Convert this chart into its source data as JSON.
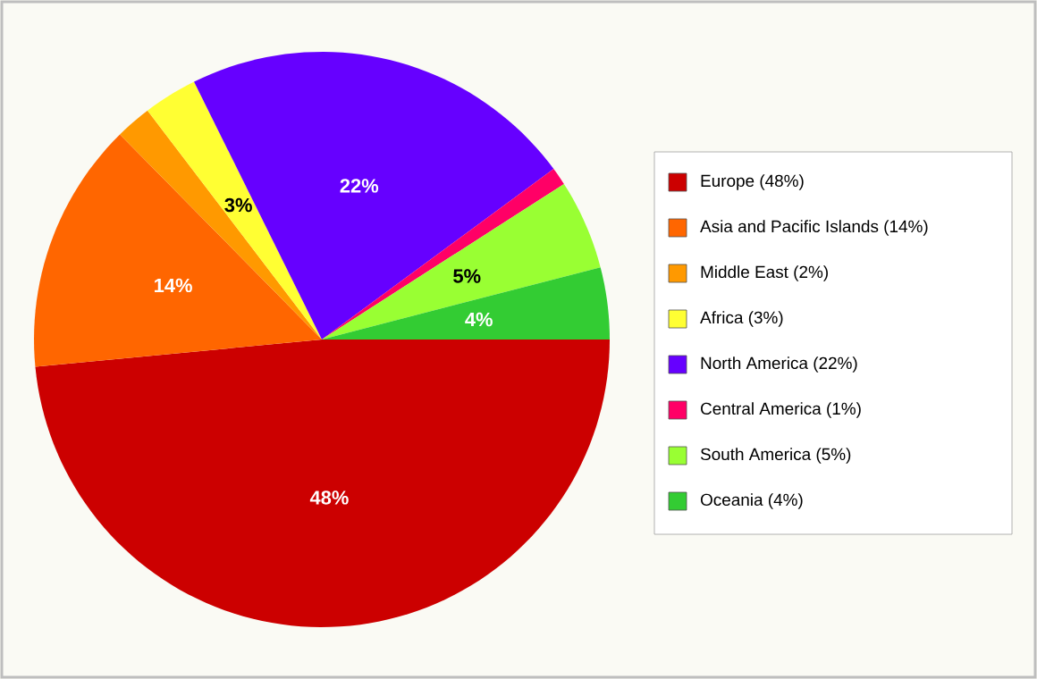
{
  "chart_data": {
    "type": "pie",
    "categories": [
      "Europe (48%)",
      "Asia and Pacific Islands (14%)",
      "Middle East (2%)",
      "Africa (3%)",
      "North America (22%)",
      "Central America (1%)",
      "South America (5%)",
      "Oceania (4%)"
    ],
    "values": [
      48,
      14,
      2,
      3,
      22,
      1,
      5,
      4
    ],
    "colors": [
      "#cc0000",
      "#ff6600",
      "#ff9900",
      "#ffff33",
      "#6600ff",
      "#ff0066",
      "#99ff33",
      "#33cc33"
    ],
    "value_labels": [
      "48%",
      "14%",
      null,
      "3%",
      "22%",
      null,
      "5%",
      "4%"
    ],
    "legend": "right"
  }
}
